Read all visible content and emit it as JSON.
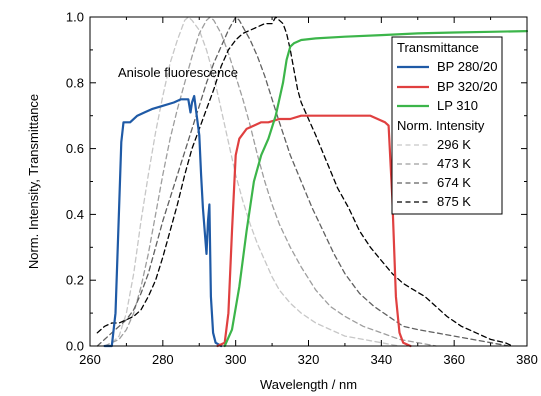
{
  "chart_data": {
    "type": "line",
    "xlabel": "Wavelength / nm",
    "ylabel": "Norm. Intensity, Transmittance",
    "xlim": [
      260,
      380
    ],
    "ylim": [
      0,
      1.0
    ],
    "x_ticks": [
      260,
      280,
      300,
      320,
      340,
      360,
      380
    ],
    "y_ticks": [
      0.0,
      0.2,
      0.4,
      0.6,
      0.8,
      1.0
    ],
    "x_tick_labels": [
      "260",
      "280",
      "300",
      "320",
      "340",
      "360",
      "380"
    ],
    "y_tick_labels": [
      "0.0",
      "0.2",
      "0.4",
      "0.6",
      "0.8",
      "1.0"
    ],
    "grid": false,
    "legend_position": "top-right",
    "annotation": "Anisole fluorescence",
    "legend": {
      "group1_title": "Transmittance",
      "group2_title": "Norm. Intensity"
    },
    "series": [
      {
        "name": "BP 280/20",
        "group": "Transmittance",
        "color": "#1f5aa6",
        "style": "solid",
        "points": [
          [
            264,
            0
          ],
          [
            266,
            0
          ],
          [
            267,
            0.1
          ],
          [
            268,
            0.42
          ],
          [
            268.6,
            0.62
          ],
          [
            269.2,
            0.68
          ],
          [
            271,
            0.68
          ],
          [
            273,
            0.7
          ],
          [
            275,
            0.71
          ],
          [
            277,
            0.72
          ],
          [
            280,
            0.73
          ],
          [
            283,
            0.74
          ],
          [
            285,
            0.75
          ],
          [
            287,
            0.75
          ],
          [
            287.6,
            0.71
          ],
          [
            288,
            0.74
          ],
          [
            288.6,
            0.76
          ],
          [
            289.2,
            0.71
          ],
          [
            290,
            0.64
          ],
          [
            290.5,
            0.52
          ],
          [
            291,
            0.42
          ],
          [
            291.5,
            0.35
          ],
          [
            292,
            0.28
          ],
          [
            292.4,
            0.38
          ],
          [
            292.8,
            0.43
          ],
          [
            293.2,
            0.15
          ],
          [
            293.8,
            0.04
          ],
          [
            294.5,
            0.01
          ],
          [
            296,
            0
          ]
        ]
      },
      {
        "name": "BP 320/20",
        "group": "Transmittance",
        "color": "#e04040",
        "style": "solid",
        "points": [
          [
            295,
            0
          ],
          [
            297,
            0.01
          ],
          [
            298,
            0.1
          ],
          [
            299,
            0.35
          ],
          [
            300,
            0.58
          ],
          [
            301,
            0.63
          ],
          [
            303,
            0.66
          ],
          [
            305,
            0.67
          ],
          [
            307,
            0.68
          ],
          [
            309,
            0.68
          ],
          [
            312,
            0.69
          ],
          [
            315,
            0.69
          ],
          [
            318,
            0.7
          ],
          [
            321,
            0.7
          ],
          [
            325,
            0.7
          ],
          [
            329,
            0.7
          ],
          [
            333,
            0.7
          ],
          [
            337,
            0.7
          ],
          [
            339,
            0.69
          ],
          [
            341,
            0.68
          ],
          [
            342,
            0.67
          ],
          [
            343,
            0.45
          ],
          [
            344,
            0.15
          ],
          [
            345,
            0.04
          ],
          [
            346,
            0.01
          ],
          [
            348,
            0
          ]
        ]
      },
      {
        "name": "LP 310",
        "group": "Transmittance",
        "color": "#3cb54a",
        "style": "solid",
        "points": [
          [
            297,
            0
          ],
          [
            299,
            0.05
          ],
          [
            301,
            0.18
          ],
          [
            303,
            0.35
          ],
          [
            305,
            0.5
          ],
          [
            307,
            0.58
          ],
          [
            309,
            0.63
          ],
          [
            311,
            0.7
          ],
          [
            313,
            0.8
          ],
          [
            314,
            0.87
          ],
          [
            315,
            0.91
          ],
          [
            316,
            0.92
          ],
          [
            318,
            0.93
          ],
          [
            322,
            0.935
          ],
          [
            330,
            0.94
          ],
          [
            340,
            0.945
          ],
          [
            350,
            0.95
          ],
          [
            360,
            0.953
          ],
          [
            370,
            0.955
          ],
          [
            380,
            0.957
          ]
        ]
      },
      {
        "name": "296 K",
        "group": "Norm. Intensity",
        "color": "#c7c7c7",
        "style": "dashed",
        "points": [
          [
            264,
            0
          ],
          [
            266,
            0.01
          ],
          [
            268,
            0.03
          ],
          [
            270,
            0.1
          ],
          [
            272,
            0.22
          ],
          [
            274,
            0.38
          ],
          [
            276,
            0.52
          ],
          [
            278,
            0.65
          ],
          [
            280,
            0.76
          ],
          [
            282,
            0.86
          ],
          [
            284,
            0.93
          ],
          [
            286,
            0.99
          ],
          [
            287,
            1.0
          ],
          [
            288,
            0.99
          ],
          [
            290,
            0.96
          ],
          [
            292,
            0.9
          ],
          [
            294,
            0.82
          ],
          [
            296,
            0.72
          ],
          [
            298,
            0.62
          ],
          [
            300,
            0.52
          ],
          [
            302,
            0.44
          ],
          [
            304,
            0.37
          ],
          [
            306,
            0.31
          ],
          [
            308,
            0.26
          ],
          [
            310,
            0.21
          ],
          [
            312,
            0.17
          ],
          [
            315,
            0.13
          ],
          [
            318,
            0.1
          ],
          [
            322,
            0.07
          ],
          [
            326,
            0.05
          ],
          [
            330,
            0.03
          ],
          [
            335,
            0.02
          ],
          [
            340,
            0.01
          ],
          [
            345,
            0
          ]
        ]
      },
      {
        "name": "473 K",
        "group": "Norm. Intensity",
        "color": "#9e9e9e",
        "style": "dashed",
        "points": [
          [
            264,
            0
          ],
          [
            266,
            0.01
          ],
          [
            268,
            0.02
          ],
          [
            270,
            0.05
          ],
          [
            272,
            0.1
          ],
          [
            274,
            0.18
          ],
          [
            276,
            0.28
          ],
          [
            278,
            0.4
          ],
          [
            280,
            0.52
          ],
          [
            282,
            0.63
          ],
          [
            284,
            0.72
          ],
          [
            286,
            0.8
          ],
          [
            288,
            0.88
          ],
          [
            290,
            0.95
          ],
          [
            292,
            0.99
          ],
          [
            293,
            1.0
          ],
          [
            294,
            0.99
          ],
          [
            296,
            0.95
          ],
          [
            298,
            0.89
          ],
          [
            300,
            0.82
          ],
          [
            302,
            0.75
          ],
          [
            304,
            0.67
          ],
          [
            306,
            0.58
          ],
          [
            308,
            0.5
          ],
          [
            310,
            0.43
          ],
          [
            312,
            0.37
          ],
          [
            315,
            0.3
          ],
          [
            318,
            0.24
          ],
          [
            322,
            0.17
          ],
          [
            326,
            0.12
          ],
          [
            330,
            0.09
          ],
          [
            335,
            0.06
          ],
          [
            340,
            0.04
          ],
          [
            345,
            0.02
          ],
          [
            350,
            0.01
          ],
          [
            355,
            0
          ]
        ]
      },
      {
        "name": "674 K",
        "group": "Norm. Intensity",
        "color": "#616161",
        "style": "dashed",
        "points": [
          [
            262,
            0
          ],
          [
            264,
            0.02
          ],
          [
            266,
            0.04
          ],
          [
            268,
            0.06
          ],
          [
            270,
            0.08
          ],
          [
            272,
            0.11
          ],
          [
            274,
            0.16
          ],
          [
            276,
            0.22
          ],
          [
            278,
            0.3
          ],
          [
            280,
            0.38
          ],
          [
            282,
            0.45
          ],
          [
            284,
            0.52
          ],
          [
            286,
            0.59
          ],
          [
            288,
            0.66
          ],
          [
            290,
            0.73
          ],
          [
            292,
            0.8
          ],
          [
            294,
            0.86
          ],
          [
            296,
            0.91
          ],
          [
            298,
            0.96
          ],
          [
            299,
            0.98
          ],
          [
            300,
            1.0
          ],
          [
            301,
            0.99
          ],
          [
            302,
            0.97
          ],
          [
            304,
            0.93
          ],
          [
            306,
            0.88
          ],
          [
            308,
            0.82
          ],
          [
            310,
            0.75
          ],
          [
            312,
            0.68
          ],
          [
            315,
            0.58
          ],
          [
            318,
            0.5
          ],
          [
            321,
            0.42
          ],
          [
            324,
            0.35
          ],
          [
            327,
            0.28
          ],
          [
            330,
            0.22
          ],
          [
            334,
            0.16
          ],
          [
            338,
            0.12
          ],
          [
            342,
            0.09
          ],
          [
            346,
            0.06
          ],
          [
            350,
            0.05
          ],
          [
            355,
            0.04
          ],
          [
            360,
            0.03
          ],
          [
            365,
            0.02
          ],
          [
            370,
            0.01
          ],
          [
            375,
            0
          ]
        ]
      },
      {
        "name": "875 K",
        "group": "Norm. Intensity",
        "color": "#000000",
        "style": "dashed",
        "points": [
          [
            262,
            0.04
          ],
          [
            264,
            0.06
          ],
          [
            266,
            0.07
          ],
          [
            268,
            0.07
          ],
          [
            270,
            0.08
          ],
          [
            272,
            0.09
          ],
          [
            274,
            0.11
          ],
          [
            276,
            0.15
          ],
          [
            278,
            0.2
          ],
          [
            280,
            0.27
          ],
          [
            282,
            0.35
          ],
          [
            284,
            0.43
          ],
          [
            286,
            0.52
          ],
          [
            288,
            0.6
          ],
          [
            290,
            0.66
          ],
          [
            292,
            0.72
          ],
          [
            294,
            0.78
          ],
          [
            296,
            0.85
          ],
          [
            298,
            0.9
          ],
          [
            300,
            0.93
          ],
          [
            302,
            0.95
          ],
          [
            304,
            0.96
          ],
          [
            306,
            0.97
          ],
          [
            308,
            0.98
          ],
          [
            310,
            0.98
          ],
          [
            311,
            1.0
          ],
          [
            313,
            0.98
          ],
          [
            314,
            0.95
          ],
          [
            315,
            0.9
          ],
          [
            316,
            0.84
          ],
          [
            317,
            0.78
          ],
          [
            318,
            0.74
          ],
          [
            320,
            0.69
          ],
          [
            322,
            0.64
          ],
          [
            325,
            0.56
          ],
          [
            328,
            0.48
          ],
          [
            331,
            0.42
          ],
          [
            334,
            0.35
          ],
          [
            337,
            0.3
          ],
          [
            340,
            0.26
          ],
          [
            343,
            0.22
          ],
          [
            346,
            0.19
          ],
          [
            349,
            0.17
          ],
          [
            352,
            0.15
          ],
          [
            355,
            0.12
          ],
          [
            358,
            0.09
          ],
          [
            362,
            0.06
          ],
          [
            366,
            0.04
          ],
          [
            370,
            0.02
          ],
          [
            374,
            0.01
          ],
          [
            376,
            0
          ]
        ]
      }
    ]
  }
}
